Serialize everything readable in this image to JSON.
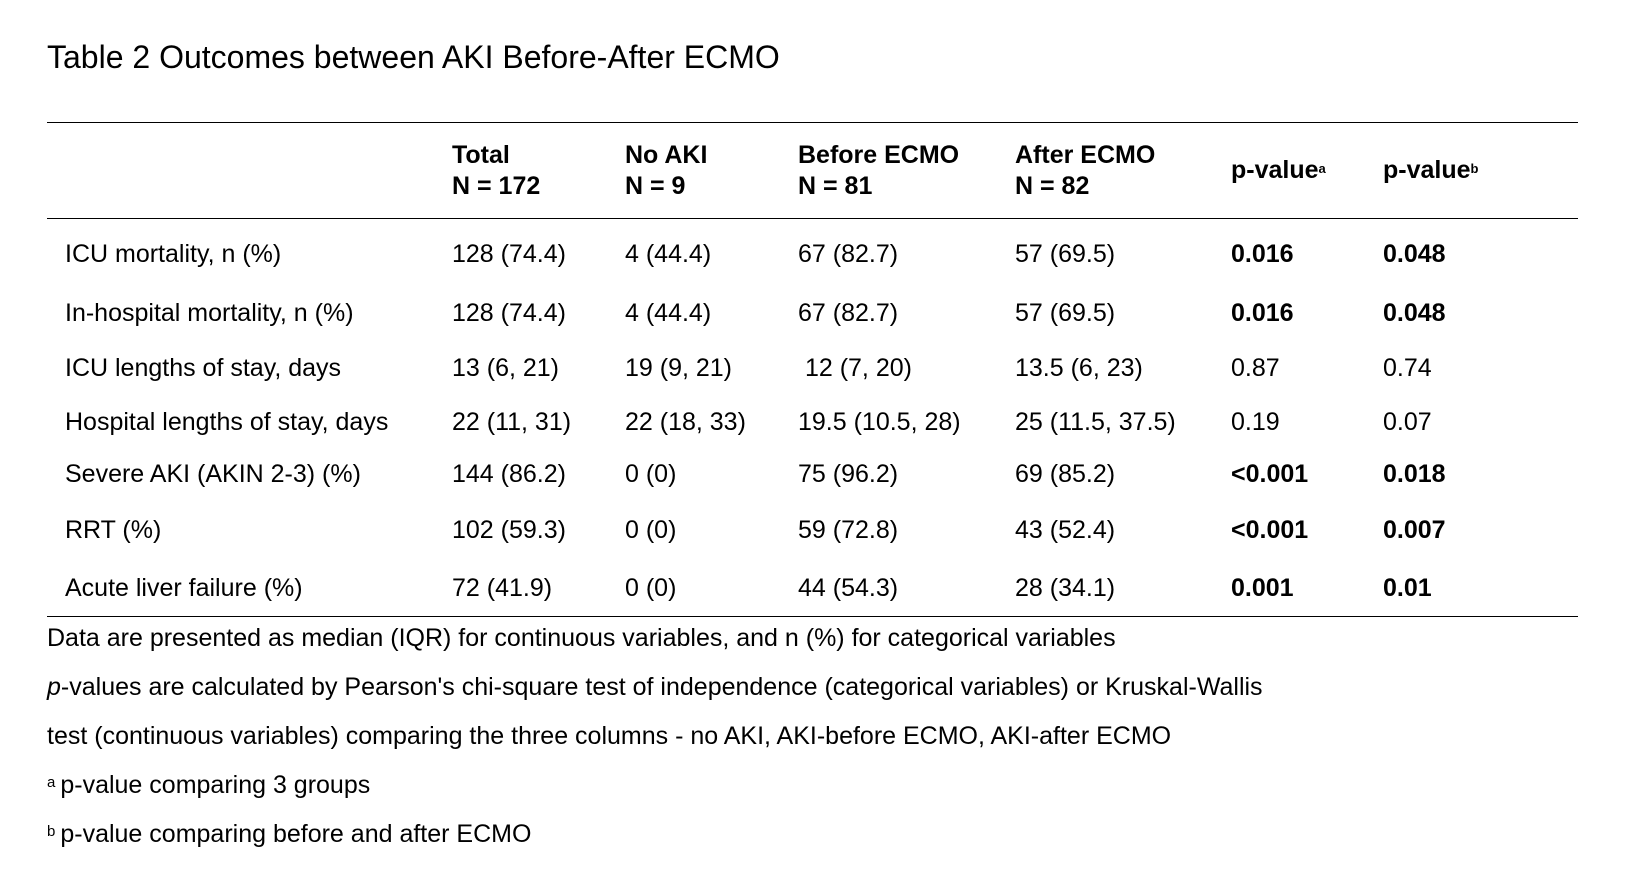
{
  "caption": "Table 2 Outcomes between AKI Before-After ECMO",
  "table": {
    "headers": [
      {
        "line1": "",
        "line2": ""
      },
      {
        "line1": "Total",
        "line2": "N = 172"
      },
      {
        "line1": "No AKI",
        "line2": "N = 9"
      },
      {
        "line1": "Before ECMO",
        "line2": "N = 81"
      },
      {
        "line1": "After ECMO",
        "line2": "N = 82"
      },
      {
        "line1": "p-value",
        "sup": "a"
      },
      {
        "line1": "p-value",
        "sup": "b"
      }
    ],
    "rows": [
      {
        "label": "ICU mortality, n (%)",
        "total": "128 (74.4)",
        "no_aki": "4 (44.4)",
        "before": "67 (82.7)",
        "after": "57 (69.5)",
        "p_a": "0.016",
        "p_b": "0.048"
      },
      {
        "label": "In-hospital mortality, n (%)",
        "total": "128 (74.4)",
        "no_aki": "4 (44.4)",
        "before": "67 (82.7)",
        "after": "57 (69.5)",
        "p_a": "0.016",
        "p_b": "0.048"
      },
      {
        "label": "ICU lengths of stay, days",
        "total": "13 (6, 21)",
        "no_aki": "19 (9, 21)",
        "before": " 12 (7, 20)",
        "after": "13.5 (6, 23)",
        "p_a": "0.87",
        "p_b": "0.74"
      },
      {
        "label": "Hospital lengths of stay, days",
        "total": "22 (11, 31)",
        "no_aki": "22 (18, 33)",
        "before": "19.5 (10.5, 28)",
        "after": "25 (11.5, 37.5)",
        "p_a": "0.19",
        "p_b": "0.07"
      },
      {
        "label": "Severe AKI (AKIN 2-3) (%)",
        "total": "144 (86.2)",
        "no_aki": "0 (0)",
        "before": "75 (96.2)",
        "after": "69 (85.2)",
        "p_a": "<0.001",
        "p_b": "0.018"
      },
      {
        "label": "RRT (%)",
        "total": "102 (59.3)",
        "no_aki": "0 (0)",
        "before": "59 (72.8)",
        "after": "43 (52.4)",
        "p_a": "<0.001",
        "p_b": "0.007"
      },
      {
        "label": "Acute liver failure (%)",
        "total": "72 (41.9)",
        "no_aki": "0 (0)",
        "before": "44 (54.3)",
        "after": "28 (34.1)",
        "p_a": "0.001",
        "p_b": "0.01"
      }
    ]
  },
  "notes": {
    "line1": "Data are presented as median (IQR) for continuous variables, and n (%) for categorical variables",
    "line2_italic": "p",
    "line2_rest": "-values are calculated by Pearson's chi-square test of independence (categorical variables) or Kruskal-Wallis",
    "line3": "test (continuous variables) comparing the three columns - no AKI, AKI-before ECMO, AKI-after ECMO",
    "foot_a_mark": "a",
    "foot_a_text": "p-value comparing 3 groups",
    "foot_b_mark": "b",
    "foot_b_text": "p-value comparing before and after ECMO"
  }
}
